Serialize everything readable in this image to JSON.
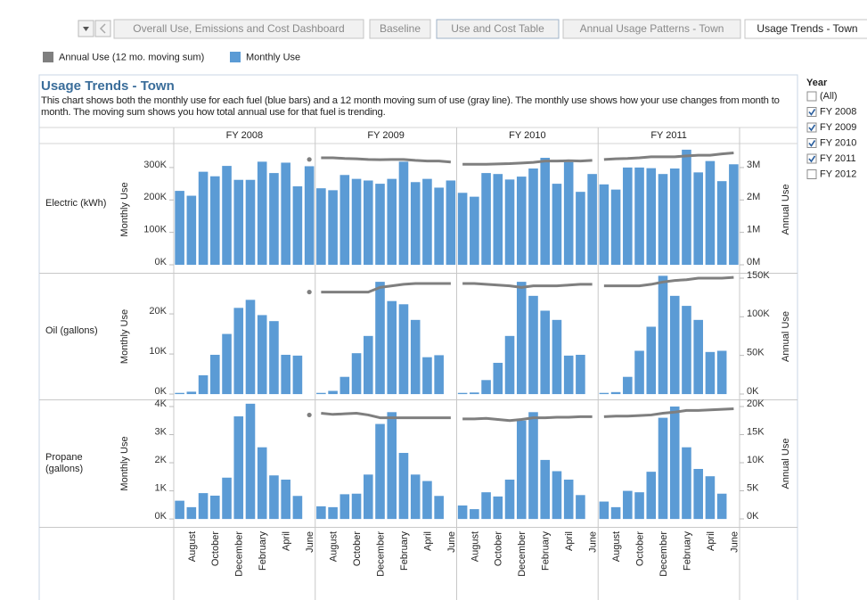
{
  "tabs": {
    "items": [
      "Overall Use, Emissions and Cost Dashboard",
      "Baseline",
      "Use and Cost Table",
      "Annual Usage Patterns - Town",
      "Usage Trends - Town"
    ],
    "active": 4
  },
  "filter": {
    "title": "Year",
    "options": [
      {
        "label": "(All)",
        "checked": false
      },
      {
        "label": "FY 2008",
        "checked": true
      },
      {
        "label": "FY 2009",
        "checked": true
      },
      {
        "label": "FY 2010",
        "checked": true
      },
      {
        "label": "FY 2011",
        "checked": true
      },
      {
        "label": "FY 2012",
        "checked": false
      }
    ]
  },
  "chart_data": {
    "type": "bar",
    "title": "Usage Trends - Town",
    "subtitle": "This chart shows both the monthly use for each fuel (blue bars) and a 12 month moving sum of use (gray line). The monthly use shows how your use changes from month to month. The moving sum shows you how total annual use for that fuel is trending.",
    "series": [
      {
        "name": "Annual Use (12 mo. moving sum)",
        "color": "#7f7f7f"
      },
      {
        "name": "Monthly Use",
        "color": "#5b9bd5"
      }
    ],
    "columns": [
      "FY 2008",
      "FY 2009",
      "FY 2010",
      "FY 2011"
    ],
    "categories": [
      null,
      "August",
      null,
      "October",
      null,
      "December",
      null,
      "February",
      null,
      "April",
      null,
      "June"
    ],
    "rows": [
      {
        "label": "Electric (kWh)",
        "ylabel": "Monthly Use",
        "y2label": "Annual Use",
        "ylim": [
          -22000,
          363000
        ],
        "yticks": [
          {
            "value": 0,
            "label": "0K"
          },
          {
            "value": 100000,
            "label": "100K"
          },
          {
            "value": 200000,
            "label": "200K"
          },
          {
            "value": 300000,
            "label": "300K"
          }
        ],
        "y2lim": [
          -220000,
          3630000
        ],
        "y2ticks": [
          {
            "value": 0,
            "label": "0M"
          },
          {
            "value": 1000000,
            "label": "1M"
          },
          {
            "value": 2000000,
            "label": "2M"
          },
          {
            "value": 3000000,
            "label": "3M"
          }
        ],
        "monthly": [
          [
            228000,
            213000,
            287000,
            273000,
            305000,
            262000,
            262000,
            318000,
            283000,
            315000,
            242000,
            304000
          ],
          [
            236000,
            230000,
            277000,
            265000,
            260000,
            250000,
            265000,
            318000,
            255000,
            265000,
            238000,
            260000
          ],
          [
            222000,
            210000,
            283000,
            280000,
            263000,
            272000,
            297000,
            330000,
            250000,
            317000,
            225000,
            280000
          ],
          [
            248000,
            232000,
            300000,
            300000,
            298000,
            280000,
            297000,
            355000,
            285000,
            320000,
            258000,
            310000
          ]
        ],
        "annual": [
          [
            null,
            null,
            null,
            null,
            null,
            null,
            null,
            null,
            null,
            null,
            null,
            3250000
          ],
          [
            3300000,
            3300000,
            3280000,
            3270000,
            3250000,
            3240000,
            3250000,
            3250000,
            3220000,
            3200000,
            3200000,
            3170000
          ],
          [
            3100000,
            3100000,
            3100000,
            3110000,
            3120000,
            3140000,
            3160000,
            3200000,
            3200000,
            3210000,
            3200000,
            3220000
          ],
          [
            3250000,
            3270000,
            3280000,
            3300000,
            3330000,
            3330000,
            3330000,
            3360000,
            3380000,
            3380000,
            3420000,
            3450000
          ]
        ]
      },
      {
        "label": "Oil (gallons)",
        "ylabel": "Monthly Use",
        "y2label": "Annual Use",
        "ylim": [
          -1100,
          29800
        ],
        "yticks": [
          {
            "value": 0,
            "label": "0K"
          },
          {
            "value": 10000,
            "label": "10K"
          },
          {
            "value": 20000,
            "label": "20K"
          }
        ],
        "y2lim": [
          -5800,
          154600
        ],
        "y2ticks": [
          {
            "value": 0,
            "label": "0K"
          },
          {
            "value": 50000,
            "label": "50K"
          },
          {
            "value": 100000,
            "label": "100K"
          },
          {
            "value": 150000,
            "label": "150K"
          }
        ],
        "monthly": [
          [
            300,
            600,
            4700,
            9800,
            15000,
            21500,
            23500,
            19700,
            18200,
            9800,
            9600,
            0
          ],
          [
            300,
            800,
            4300,
            10200,
            14500,
            28000,
            23200,
            22400,
            18500,
            9200,
            9700,
            0
          ],
          [
            300,
            400,
            3500,
            7800,
            14500,
            28000,
            24500,
            20800,
            18500,
            9600,
            9800,
            0
          ],
          [
            300,
            500,
            4300,
            10800,
            16800,
            29500,
            24500,
            22000,
            18500,
            10500,
            10800,
            0
          ]
        ],
        "annual": [
          [
            null,
            null,
            null,
            null,
            null,
            null,
            null,
            null,
            null,
            null,
            null,
            132000
          ],
          [
            132000,
            132000,
            132000,
            132000,
            132000,
            138000,
            140000,
            142000,
            143000,
            143000,
            143000,
            143000
          ],
          [
            143000,
            143000,
            142000,
            141000,
            140000,
            138000,
            140000,
            140000,
            140000,
            141000,
            142000,
            142000
          ],
          [
            140000,
            140000,
            140000,
            140000,
            142000,
            145000,
            147000,
            148000,
            150000,
            150000,
            150000,
            151000
          ]
        ]
      },
      {
        "label": "Propane (gallons)",
        "ylabel": "Monthly Use",
        "y2label": "Annual Use",
        "ylim": [
          -250,
          4190
        ],
        "yticks": [
          {
            "value": 0,
            "label": "0K"
          },
          {
            "value": 1000,
            "label": "1K"
          },
          {
            "value": 2000,
            "label": "2K"
          },
          {
            "value": 3000,
            "label": "3K"
          },
          {
            "value": 4000,
            "label": "4K"
          }
        ],
        "y2lim": [
          -1270,
          20950
        ],
        "y2ticks": [
          {
            "value": 0,
            "label": "0K"
          },
          {
            "value": 5000,
            "label": "5K"
          },
          {
            "value": 10000,
            "label": "10K"
          },
          {
            "value": 15000,
            "label": "15K"
          },
          {
            "value": 20000,
            "label": "20K"
          }
        ],
        "monthly": [
          [
            650,
            420,
            920,
            830,
            1470,
            3650,
            4100,
            2550,
            1550,
            1400,
            820,
            0
          ],
          [
            450,
            420,
            880,
            900,
            1580,
            3380,
            3800,
            2350,
            1580,
            1350,
            820,
            0
          ],
          [
            480,
            350,
            950,
            800,
            1400,
            3500,
            3800,
            2100,
            1700,
            1400,
            850,
            0
          ],
          [
            620,
            420,
            1000,
            950,
            1680,
            3600,
            4000,
            2550,
            1780,
            1520,
            900,
            0
          ]
        ],
        "annual": [
          [
            null,
            null,
            null,
            null,
            null,
            null,
            null,
            null,
            null,
            null,
            null,
            18500
          ],
          [
            18800,
            18600,
            18700,
            18800,
            18500,
            18000,
            18000,
            18000,
            18000,
            18000,
            18000,
            18000
          ],
          [
            17800,
            17800,
            17900,
            17700,
            17500,
            17700,
            18000,
            18000,
            18100,
            18100,
            18200,
            18200
          ],
          [
            18200,
            18300,
            18300,
            18400,
            18500,
            18800,
            19000,
            19300,
            19300,
            19400,
            19500,
            19600
          ]
        ]
      }
    ]
  }
}
